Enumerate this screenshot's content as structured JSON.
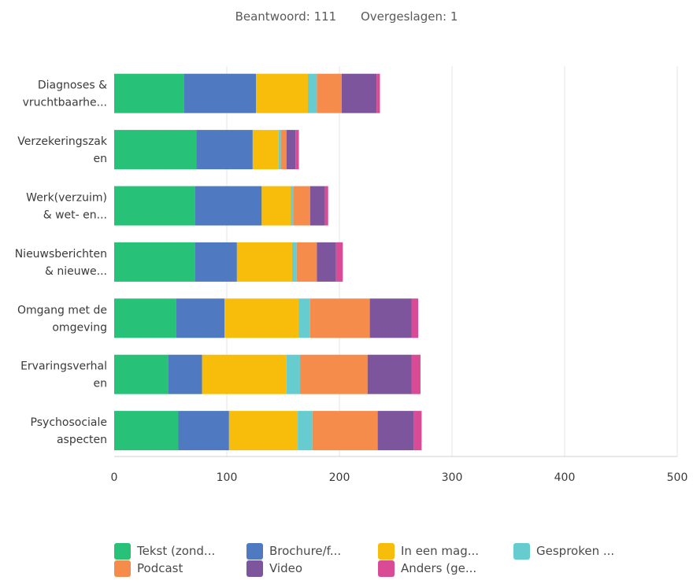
{
  "summary": {
    "answered_label": "Beantwoord:",
    "answered_value": "111",
    "skipped_label": "Overgeslagen:",
    "skipped_value": "1"
  },
  "chart_data": {
    "type": "bar",
    "orientation": "horizontal",
    "stacked": true,
    "title": "",
    "xlabel": "",
    "ylabel": "",
    "xlim": [
      0,
      500
    ],
    "x_ticks": [
      0,
      100,
      200,
      300,
      400,
      500
    ],
    "grid": "vertical",
    "legend_position": "bottom",
    "categories": [
      "Diagnoses & vruchtbaarhe...",
      "Verzekeringszak en",
      "Werk(verzuim) & wet- en...",
      "Nieuwsberichten & nieuwe...",
      "Omgang met de omgeving",
      "Ervaringsverhal en",
      "Psychosociale aspecten"
    ],
    "category_lines": [
      [
        "Diagnoses &",
        "vruchtbaarhe..."
      ],
      [
        "Verzekeringszak",
        "en"
      ],
      [
        "Werk(verzuim)",
        "& wet- en..."
      ],
      [
        "Nieuwsberichten",
        "& nieuwe..."
      ],
      [
        "Omgang met de",
        "omgeving"
      ],
      [
        "Ervaringsverhal",
        "en"
      ],
      [
        "Psychosociale",
        "aspecten"
      ]
    ],
    "series": [
      {
        "name": "Tekst (zond...",
        "color": "#27c177",
        "values": [
          62,
          73,
          72,
          72,
          55,
          48,
          57
        ]
      },
      {
        "name": "Brochure/f...",
        "color": "#4f79c0",
        "values": [
          64,
          50,
          59,
          37,
          43,
          30,
          45
        ]
      },
      {
        "name": "In een mag...",
        "color": "#f7bd0a",
        "values": [
          46,
          23,
          26,
          49,
          66,
          75,
          61
        ]
      },
      {
        "name": "Gesproken ...",
        "color": "#66cccf",
        "values": [
          8,
          2,
          2,
          4,
          10,
          12,
          13
        ]
      },
      {
        "name": "Podcast",
        "color": "#f58c4b",
        "values": [
          22,
          5,
          15,
          18,
          53,
          60,
          58
        ]
      },
      {
        "name": "Video",
        "color": "#7c559d",
        "values": [
          31,
          8,
          13,
          17,
          37,
          39,
          32
        ]
      },
      {
        "name": "Anders (ge...",
        "color": "#da4b95",
        "values": [
          3,
          3,
          3,
          6,
          6,
          8,
          7
        ]
      }
    ]
  }
}
